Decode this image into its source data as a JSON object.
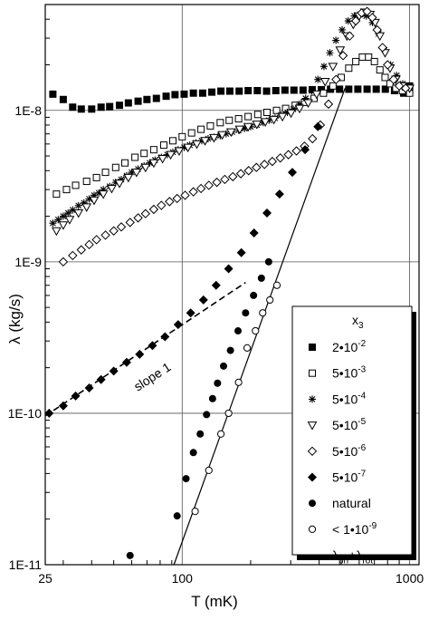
{
  "chart_data": {
    "type": "scatter",
    "xscale": "log",
    "yscale": "log",
    "xlim": [
      25,
      1100
    ],
    "ylim": [
      1e-11,
      5e-08
    ],
    "grid": true,
    "xlabel": "T (mK)",
    "ylabel": "λ (kg/s)",
    "xticks": [
      {
        "v": 25,
        "label": "25"
      },
      {
        "v": 100,
        "label": "100"
      },
      {
        "v": 1000,
        "label": "1000"
      }
    ],
    "yticks": [
      {
        "v": 1e-11,
        "label": "1E-11"
      },
      {
        "v": 1e-10,
        "label": "1E-10"
      },
      {
        "v": 1e-09,
        "label": "1E-9"
      },
      {
        "v": 1e-08,
        "label": "1E-8"
      }
    ],
    "legend": {
      "title": "x",
      "title_sub": "3",
      "placement": "right",
      "entries": [
        {
          "marker": "square-filled",
          "text": "2•10",
          "sup": "-2"
        },
        {
          "marker": "square-open",
          "text": "5•10",
          "sup": "-3"
        },
        {
          "marker": "star",
          "text": "5•10",
          "sup": "-4"
        },
        {
          "marker": "triangle-down-open",
          "text": "5•10",
          "sup": "-5"
        },
        {
          "marker": "diamond-open",
          "text": "5•10",
          "sup": "-6"
        },
        {
          "marker": "diamond-filled",
          "text": "5•10",
          "sup": "-7"
        },
        {
          "marker": "circle-filled",
          "text": "natural",
          "sup": ""
        },
        {
          "marker": "circle-open",
          "text": "< 1•10",
          "sup": "-9"
        },
        {
          "marker": "line",
          "text": "λ",
          "sub1": "ph",
          "mid": "+λ",
          "sub2": "rot"
        }
      ]
    },
    "annotation": {
      "text": "slope 1"
    },
    "series": [
      {
        "marker": "square-filled",
        "x": [
          27,
          30,
          33,
          36,
          40,
          44,
          48,
          53,
          58,
          64,
          70,
          77,
          85,
          93,
          102,
          112,
          123,
          135,
          148,
          162,
          178,
          195,
          214,
          235,
          258,
          283,
          310,
          340,
          373,
          409,
          449,
          492,
          540,
          592,
          650,
          713,
          782,
          858,
          941,
          1000
        ],
        "y": [
          1.28e-08,
          1.18e-08,
          1.05e-08,
          1.02e-08,
          1.02e-08,
          1.05e-08,
          1.06e-08,
          1.08e-08,
          1.12e-08,
          1.15e-08,
          1.18e-08,
          1.2e-08,
          1.24e-08,
          1.27e-08,
          1.28e-08,
          1.3e-08,
          1.3e-08,
          1.32e-08,
          1.34e-08,
          1.34e-08,
          1.34e-08,
          1.35e-08,
          1.35e-08,
          1.34e-08,
          1.35e-08,
          1.36e-08,
          1.36e-08,
          1.36e-08,
          1.37e-08,
          1.37e-08,
          1.38e-08,
          1.38e-08,
          1.38e-08,
          1.38e-08,
          1.38e-08,
          1.38e-08,
          1.38e-08,
          1.35e-08,
          1.3e-08,
          1.45e-08
        ]
      },
      {
        "marker": "square-open",
        "x": [
          28,
          31,
          34,
          38,
          42,
          46,
          51,
          56,
          62,
          68,
          75,
          83,
          91,
          100,
          110,
          121,
          133,
          147,
          161,
          177,
          195,
          215,
          236,
          260,
          285,
          314,
          345,
          380,
          418,
          460,
          500,
          540,
          580,
          620,
          660,
          700,
          740,
          780,
          820,
          870,
          930,
          1000
        ],
        "y": [
          2.8e-09,
          3e-09,
          3.2e-09,
          3.4e-09,
          3.6e-09,
          3.9e-09,
          4.2e-09,
          4.5e-09,
          4.9e-09,
          5.2e-09,
          5.5e-09,
          5.9e-09,
          6.3e-09,
          6.7e-09,
          7.1e-09,
          7.5e-09,
          7.9e-09,
          8.3e-09,
          8.6e-09,
          8.8e-09,
          9.1e-09,
          9.4e-09,
          9.7e-09,
          1e-08,
          1.03e-08,
          1.08e-08,
          1.13e-08,
          1.2e-08,
          1.3e-08,
          1.45e-08,
          1.65e-08,
          1.9e-08,
          2.1e-08,
          2.25e-08,
          2.25e-08,
          2.1e-08,
          1.85e-08,
          1.65e-08,
          1.5e-08,
          1.4e-08,
          1.35e-08,
          1.3e-08
        ]
      },
      {
        "marker": "star",
        "x": [
          27,
          28.5,
          30,
          31.5,
          33,
          35,
          37,
          39,
          41,
          43,
          45,
          48,
          51,
          54,
          57,
          60,
          64,
          68,
          72,
          76,
          81,
          86,
          91,
          96,
          102,
          108,
          115,
          122,
          130,
          138,
          147,
          156,
          166,
          177,
          188,
          200,
          213,
          227,
          241,
          256,
          272,
          290,
          308,
          328,
          349,
          371,
          395,
          420,
          446,
          474,
          505,
          537,
          571,
          607,
          645,
          686,
          730,
          776,
          825,
          877,
          933,
          1000
        ],
        "y": [
          1.8e-09,
          1.9e-09,
          2e-09,
          2.1e-09,
          2.2e-09,
          2.35e-09,
          2.45e-09,
          2.6e-09,
          2.75e-09,
          2.85e-09,
          3e-09,
          3.15e-09,
          3.35e-09,
          3.5e-09,
          3.7e-09,
          3.9e-09,
          4.1e-09,
          4.3e-09,
          4.5e-09,
          4.7e-09,
          4.9e-09,
          5.1e-09,
          5.3e-09,
          5.5e-09,
          5.7e-09,
          5.9e-09,
          6.1e-09,
          6.3e-09,
          6.5e-09,
          6.65e-09,
          6.8e-09,
          7e-09,
          7.2e-09,
          7.4e-09,
          7.6e-09,
          7.8e-09,
          8e-09,
          8.3e-09,
          8.6e-09,
          8.9e-09,
          9.3e-09,
          9.7e-09,
          1.02e-08,
          1.1e-08,
          1.2e-08,
          1.35e-08,
          1.6e-08,
          1.95e-08,
          2.4e-08,
          2.9e-08,
          3.4e-08,
          3.9e-08,
          4.2e-08,
          4.3e-08,
          4.2e-08,
          3.8e-08,
          3.2e-08,
          2.5e-08,
          2e-08,
          1.7e-08,
          1.5e-08,
          1.4e-08
        ]
      },
      {
        "marker": "triangle-down-open",
        "x": [
          28,
          30,
          32,
          35,
          38,
          41,
          45,
          49,
          53,
          58,
          63,
          69,
          75,
          82,
          89,
          97,
          106,
          116,
          126,
          138,
          150,
          164,
          179,
          195,
          213,
          232,
          253,
          276,
          301,
          328,
          358,
          390,
          425,
          460,
          495,
          530,
          565,
          600,
          635,
          670,
          705,
          740,
          780,
          820,
          870,
          930,
          1000
        ],
        "y": [
          1.6e-09,
          1.75e-09,
          1.9e-09,
          2.1e-09,
          2.3e-09,
          2.55e-09,
          2.8e-09,
          3.05e-09,
          3.3e-09,
          3.6e-09,
          3.9e-09,
          4.2e-09,
          4.5e-09,
          4.8e-09,
          5.1e-09,
          5.4e-09,
          5.7e-09,
          6e-09,
          6.3e-09,
          6.6e-09,
          6.9e-09,
          7.2e-09,
          7.5e-09,
          7.8e-09,
          8.1e-09,
          8.4e-09,
          8.7e-09,
          9.1e-09,
          9.6e-09,
          1.03e-08,
          1.12e-08,
          1.28e-08,
          1.55e-08,
          1.95e-08,
          2.5e-08,
          3.1e-08,
          3.7e-08,
          4.2e-08,
          4.45e-08,
          4.3e-08,
          3.8e-08,
          3.1e-08,
          2.4e-08,
          1.9e-08,
          1.6e-08,
          1.45e-08,
          1.4e-08
        ]
      },
      {
        "marker": "diamond-open",
        "x": [
          30,
          33,
          36,
          39,
          42,
          46,
          50,
          54,
          59,
          64,
          69,
          75,
          81,
          88,
          95,
          103,
          112,
          121,
          131,
          142,
          154,
          167,
          181,
          196,
          212,
          230,
          249,
          270,
          293,
          318,
          345,
          374,
          405,
          440,
          475,
          510,
          545,
          580,
          615,
          650,
          685,
          720,
          760,
          800,
          850,
          900,
          960
        ],
        "y": [
          1e-09,
          1.1e-09,
          1.2e-09,
          1.3e-09,
          1.4e-09,
          1.5e-09,
          1.6e-09,
          1.7e-09,
          1.82e-09,
          1.95e-09,
          2.08e-09,
          2.22e-09,
          2.36e-09,
          2.5e-09,
          2.62e-09,
          2.75e-09,
          2.9e-09,
          3.05e-09,
          3.2e-09,
          3.35e-09,
          3.5e-09,
          3.65e-09,
          3.82e-09,
          4e-09,
          4.2e-09,
          4.4e-09,
          4.6e-09,
          4.85e-09,
          5.1e-09,
          5.4e-09,
          5.8e-09,
          6.5e-09,
          8e-09,
          1.1e-08,
          1.6e-08,
          2.3e-08,
          3.1e-08,
          3.9e-08,
          4.4e-08,
          4.5e-08,
          4.1e-08,
          3.4e-08,
          2.6e-08,
          2e-08,
          1.6e-08,
          1.45e-08,
          1.4e-08
        ]
      },
      {
        "marker": "diamond-filled",
        "x": [
          26,
          30,
          34,
          39,
          44,
          50,
          57,
          65,
          74,
          84,
          96,
          109,
          124,
          141,
          160,
          182,
          207,
          236,
          268,
          305,
          347,
          395
        ],
        "y": [
          1e-10,
          1.12e-10,
          1.3e-10,
          1.47e-10,
          1.67e-10,
          1.9e-10,
          2.17e-10,
          2.45e-10,
          2.8e-10,
          3.2e-10,
          3.85e-10,
          4.6e-10,
          5.6e-10,
          7e-10,
          9e-10,
          1.15e-09,
          1.55e-09,
          2.1e-09,
          2.8e-09,
          3.9e-09,
          5.5e-09,
          7.8e-09
        ]
      },
      {
        "marker": "circle-filled",
        "x": [
          59,
          95,
          104,
          112,
          120,
          128,
          136,
          143,
          152,
          163,
          176,
          190,
          206,
          223,
          240
        ],
        "y": [
          1.15e-11,
          2.1e-11,
          3.7e-11,
          5.5e-11,
          7.3e-11,
          9.8e-11,
          1.25e-10,
          1.58e-10,
          2.05e-10,
          2.6e-10,
          3.5e-10,
          4.6e-10,
          6e-10,
          7.8e-10,
          1e-09
        ]
      },
      {
        "marker": "circle-open",
        "x": [
          114,
          131,
          148,
          160,
          177,
          193,
          210,
          226,
          243,
          261
        ],
        "y": [
          2.25e-11,
          4.2e-11,
          7.3e-11,
          1e-10,
          1.6e-10,
          2.7e-10,
          3.5e-10,
          4.6e-10,
          5.6e-10,
          7e-10
        ]
      }
    ],
    "lines": [
      {
        "name": "λph+λrot",
        "style": "solid",
        "x": [
          92,
          520
        ],
        "y": [
          1e-11,
          1.4e-08
        ]
      },
      {
        "name": "slope 1",
        "style": "dashed",
        "x": [
          25,
          190
        ],
        "y": [
          9.6e-11,
          7.3e-10
        ]
      }
    ]
  }
}
